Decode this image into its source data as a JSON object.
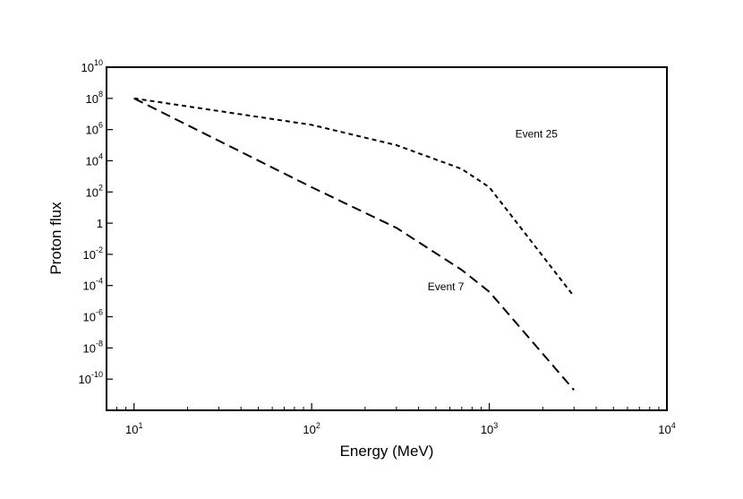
{
  "chart_data": {
    "type": "line",
    "x_scale": "log",
    "y_scale": "log",
    "xlabel": "Energy (MeV)",
    "ylabel": "Proton flux",
    "xlim": [
      7,
      10000
    ],
    "ylim": [
      1e-12,
      10000000000.0
    ],
    "grid": false,
    "legend": "none",
    "x_ticks": [
      {
        "base": "10",
        "exp": "1",
        "value": 10
      },
      {
        "base": "10",
        "exp": "2",
        "value": 100
      },
      {
        "base": "10",
        "exp": "3",
        "value": 1000
      },
      {
        "base": "10",
        "exp": "4",
        "value": 10000
      }
    ],
    "y_ticks": [
      {
        "base": "10",
        "exp": "10",
        "value": 10000000000.0
      },
      {
        "base": "10",
        "exp": "8",
        "value": 100000000.0
      },
      {
        "base": "10",
        "exp": "6",
        "value": 1000000.0
      },
      {
        "base": "10",
        "exp": "4",
        "value": 10000.0
      },
      {
        "base": "10",
        "exp": "2",
        "value": 100.0
      },
      {
        "base": "1",
        "exp": "",
        "value": 1
      },
      {
        "base": "10",
        "exp": "-2",
        "value": 0.01
      },
      {
        "base": "10",
        "exp": "-4",
        "value": 0.0001
      },
      {
        "base": "10",
        "exp": "-6",
        "value": 1e-06
      },
      {
        "base": "10",
        "exp": "-8",
        "value": 1e-08
      },
      {
        "base": "10",
        "exp": "-10",
        "value": 1e-10
      }
    ],
    "series": [
      {
        "name": "Event 25",
        "dash": "short",
        "points": [
          [
            10,
            100000000.0
          ],
          [
            100,
            2000000.0
          ],
          [
            300,
            100000.0
          ],
          [
            700,
            3000.0
          ],
          [
            1000,
            200.0
          ],
          [
            3000,
            2e-05
          ]
        ]
      },
      {
        "name": "Event 7",
        "dash": "long",
        "points": [
          [
            10,
            100000000.0
          ],
          [
            100,
            200.0
          ],
          [
            300,
            0.5
          ],
          [
            700,
            0.001
          ],
          [
            1000,
            4e-05
          ],
          [
            3000,
            2e-11
          ]
        ]
      }
    ],
    "annotations": [
      {
        "text": "Event 25",
        "x": 1400,
        "y": 300000.0
      },
      {
        "text": "Event 7",
        "x": 450,
        "y": 5e-05
      }
    ]
  }
}
